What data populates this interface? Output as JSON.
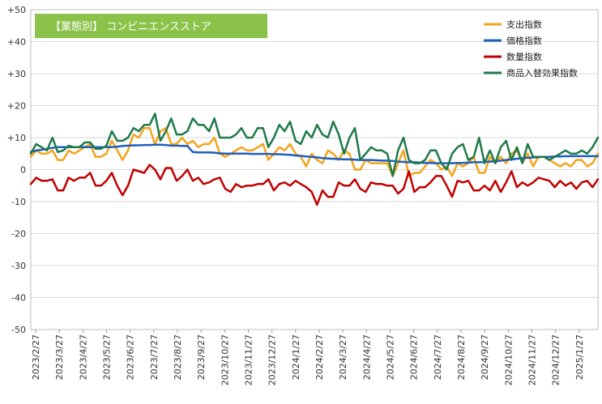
{
  "chart_data": {
    "type": "line",
    "title": "【業態別】 コンビニエンスストア",
    "title_bg_color": "#8bc34a",
    "xlabel": "",
    "ylabel": "",
    "ylim": [
      -50,
      50
    ],
    "yticks": [
      50,
      40,
      30,
      20,
      10,
      0,
      -10,
      -20,
      -30,
      -40,
      -50
    ],
    "ytick_labels": [
      "+50",
      "+40",
      "+30",
      "+20",
      "+10",
      "0",
      "-10",
      "-20",
      "-30",
      "-40",
      "-50"
    ],
    "grid": true,
    "legend_position": "top-right",
    "x_tick_labels": [
      "2023/2/27",
      "2023/3/27",
      "2023/4/27",
      "2023/5/27",
      "2023/6/27",
      "2023/7/27",
      "2023/8/27",
      "2023/9/27",
      "2023/10/27",
      "2023/11/27",
      "2023/12/27",
      "2024/1/27",
      "2024/2/27",
      "2024/3/27",
      "2024/4/27",
      "2024/5/27",
      "2024/6/27",
      "2024/7/27",
      "2024/8/27",
      "2024/9/27",
      "2024/10/27",
      "2024/11/27",
      "2024/12/27",
      "2025/1/27"
    ],
    "series": [
      {
        "name": "支出指数",
        "color": "#f5a31a",
        "values": [
          4,
          6,
          5,
          5,
          6,
          3,
          3,
          6,
          5,
          6,
          7,
          8,
          4,
          4,
          5,
          9,
          6,
          3,
          6,
          11,
          10,
          13,
          13,
          8,
          12,
          13,
          8,
          8,
          10,
          8,
          9,
          7,
          8,
          8,
          10,
          5,
          4,
          5,
          6,
          7,
          6,
          6,
          7,
          8,
          3,
          5,
          7,
          6,
          8,
          5,
          4,
          1,
          5,
          3,
          2,
          6,
          5,
          3,
          6,
          5,
          0,
          0,
          3,
          2,
          2,
          2,
          2,
          -2,
          2,
          6,
          -2,
          -1,
          -1,
          1,
          3,
          2,
          0,
          1,
          -2,
          2,
          1,
          2,
          4,
          -1,
          -1,
          4,
          2,
          4,
          2,
          5,
          6,
          2,
          5,
          1,
          4,
          4,
          3,
          2,
          1,
          2,
          1,
          3,
          3,
          1,
          2,
          5
        ]
      },
      {
        "name": "価格指数",
        "color": "#1f5fbf",
        "values": [
          5.5,
          6,
          6.2,
          6.5,
          6.8,
          7,
          7,
          7,
          7,
          7,
          7,
          7,
          7,
          7,
          7,
          7,
          7.2,
          7.4,
          7.5,
          7.6,
          7.6,
          7.7,
          7.7,
          7.8,
          7.8,
          7.7,
          7.5,
          7.5,
          7.4,
          7.4,
          5.5,
          5.4,
          5.4,
          5.4,
          5.3,
          5.1,
          5,
          5,
          5,
          5,
          5,
          4.9,
          4.9,
          4.9,
          4.9,
          4.8,
          4.8,
          4.7,
          4.6,
          4.4,
          4.3,
          4.1,
          4.0,
          3.8,
          3.6,
          3.5,
          3.4,
          3.3,
          3.2,
          3.2,
          3.1,
          3.0,
          3.0,
          3.0,
          2.9,
          2.8,
          2.8,
          2.7,
          2.5,
          2.4,
          2.3,
          2.3,
          2.2,
          2.1,
          2.1,
          2.0,
          2.0,
          2.0,
          2.0,
          2.1,
          2.1,
          2.2,
          2.3,
          2.3,
          2.4,
          2.5,
          2.6,
          2.8,
          3.0,
          3.2,
          3.4,
          3.6,
          3.7,
          3.8,
          3.9,
          4.0,
          4.0,
          4.1,
          4.1,
          4.2,
          4.2,
          4.2,
          4.2,
          4.2,
          4.2,
          4.2
        ]
      },
      {
        "name": "数量指数",
        "color": "#c00000",
        "values": [
          -4.5,
          -2.5,
          -3.5,
          -3.5,
          -3,
          -6.5,
          -6.5,
          -2.5,
          -3.5,
          -2.5,
          -2.5,
          -1,
          -5,
          -5,
          -3.5,
          -1,
          -5,
          -8,
          -5,
          0,
          -0.5,
          -1,
          1.5,
          0,
          -3,
          0.5,
          0.5,
          -3.5,
          -2,
          0,
          -3.5,
          -2.5,
          -4.5,
          -4,
          -3,
          -2.5,
          -6,
          -7,
          -4.5,
          -5.5,
          -5,
          -5,
          -4.5,
          -4.5,
          -3,
          -6.5,
          -4.5,
          -4,
          -5,
          -3.5,
          -4.5,
          -5.5,
          -7,
          -11,
          -6.5,
          -8.5,
          -8.5,
          -4,
          -5,
          -5,
          -3,
          -6,
          -7,
          -4,
          -4.5,
          -4.5,
          -5,
          -5,
          -7.5,
          -6,
          -0.5,
          -7,
          -5.5,
          -5.5,
          -4,
          -2,
          -2,
          -5,
          -8.5,
          -3.5,
          -4,
          -3.5,
          -6.5,
          -6.5,
          -5,
          -6.5,
          -3.5,
          -7,
          -4,
          -0.5,
          -5.5,
          -4,
          -5,
          -4,
          -2.5,
          -3,
          -3.5,
          -5.5,
          -3.5,
          -5,
          -4,
          -6,
          -4,
          -3.5,
          -5.5,
          -3
        ]
      },
      {
        "name": "商品入替効果指数",
        "color": "#1e7a4a",
        "values": [
          5,
          8,
          7,
          6,
          10,
          5.5,
          6,
          7.5,
          7,
          7,
          8.5,
          8.5,
          6.5,
          6.5,
          7.5,
          12,
          9,
          9,
          10,
          13,
          12,
          14,
          14,
          17.5,
          9,
          12,
          16,
          11,
          11,
          12,
          16,
          14,
          14,
          12,
          16,
          10,
          10,
          10,
          11,
          13,
          10,
          10,
          13,
          13,
          7,
          10,
          14,
          12,
          15,
          9,
          8,
          12,
          10,
          14,
          11,
          10,
          15,
          11,
          5,
          10,
          13,
          3,
          5,
          7,
          6,
          6,
          5,
          -2,
          6,
          10,
          3,
          2,
          2,
          3,
          6,
          6,
          2,
          0,
          5,
          7,
          8,
          3,
          4,
          10,
          2,
          6,
          2,
          7,
          9,
          3,
          7,
          2,
          8,
          4,
          4,
          4,
          3,
          4,
          5,
          6,
          5,
          5,
          6,
          5,
          7,
          10
        ]
      }
    ]
  }
}
